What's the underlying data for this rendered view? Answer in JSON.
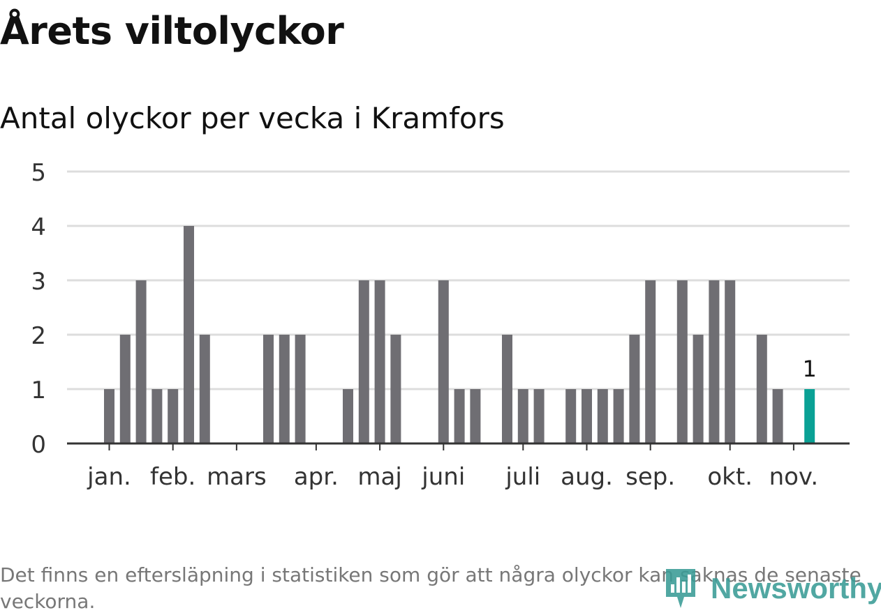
{
  "header": {
    "title": "Årets viltolyckor",
    "subtitle": "Antal olyckor per vecka i Kramfors"
  },
  "chart_data": {
    "type": "bar",
    "title": "Årets viltolyckor",
    "subtitle": "Antal olyckor per vecka i Kramfors",
    "xlabel": "",
    "ylabel": "",
    "ylim": [
      0,
      5
    ],
    "yticks": [
      0,
      1,
      2,
      3,
      4,
      5
    ],
    "grid": true,
    "x_unit": "week",
    "weeks": [
      1,
      2,
      3,
      4,
      5,
      6,
      7,
      8,
      9,
      10,
      11,
      12,
      13,
      14,
      15,
      16,
      17,
      18,
      19,
      20,
      21,
      22,
      23,
      24,
      25,
      26,
      27,
      28,
      29,
      30,
      31,
      32,
      33,
      34,
      35,
      36,
      37,
      38,
      39,
      40,
      41,
      42,
      43,
      44,
      45
    ],
    "values": [
      1,
      2,
      3,
      1,
      1,
      4,
      2,
      0,
      0,
      0,
      2,
      2,
      2,
      0,
      0,
      1,
      3,
      3,
      2,
      0,
      0,
      3,
      1,
      1,
      0,
      2,
      1,
      1,
      0,
      1,
      1,
      1,
      1,
      2,
      3,
      0,
      3,
      2,
      3,
      3,
      0,
      2,
      1,
      0,
      1
    ],
    "highlight_index": 44,
    "highlight_label": "1",
    "month_labels": [
      {
        "label": "jan.",
        "week": 1.0
      },
      {
        "label": "feb.",
        "week": 5.0
      },
      {
        "label": "mars",
        "week": 9.0
      },
      {
        "label": "apr.",
        "week": 14.0
      },
      {
        "label": "maj",
        "week": 18.0
      },
      {
        "label": "juni",
        "week": 22.0
      },
      {
        "label": "juli",
        "week": 27.0
      },
      {
        "label": "aug.",
        "week": 31.0
      },
      {
        "label": "sep.",
        "week": 35.0
      },
      {
        "label": "okt.",
        "week": 40.0
      },
      {
        "label": "nov.",
        "week": 44.0
      }
    ],
    "colors": {
      "bar": "#6f6e73",
      "highlight": "#0aa195",
      "grid": "#dddddd",
      "axis": "#333333",
      "tick_text": "#333333"
    }
  },
  "footer": {
    "note": "Det finns en eftersläpning i statistiken som gör att några olyckor kan saknas de senaste veckorna.",
    "brand": "Newsworthy",
    "brand_icon": "newsworthy-logo-icon",
    "brand_color": "#3a9c96"
  }
}
